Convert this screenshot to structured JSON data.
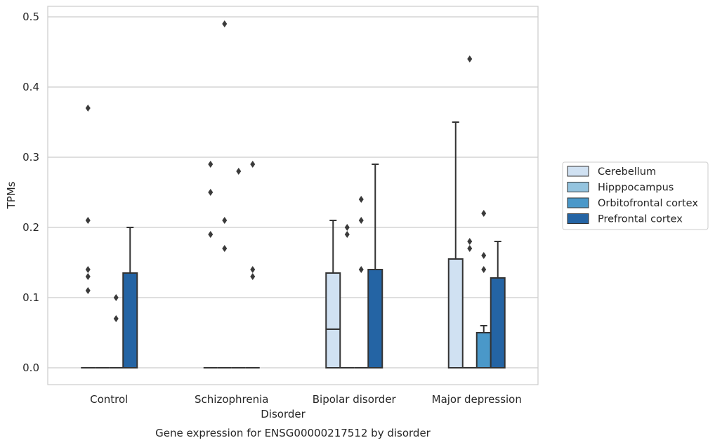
{
  "chart_data": {
    "type": "boxplot",
    "caption": "Gene expression for ENSG00000217512 by disorder",
    "xlabel": "Disorder",
    "ylabel": "TPMs",
    "ylim": [
      -0.024,
      0.515
    ],
    "yticks": [
      0.0,
      0.1,
      0.2,
      0.3,
      0.4,
      0.5
    ],
    "ytick_labels": [
      "0.0",
      "0.1",
      "0.2",
      "0.3",
      "0.4",
      "0.5"
    ],
    "categories": [
      "Control",
      "Schizophrenia",
      "Bipolar disorder",
      "Major depression"
    ],
    "grid": "horizontal",
    "legend_position": "right",
    "series": [
      {
        "name": "Cerebellum",
        "color": "#d0e1f2",
        "boxes": [
          {
            "q1": 0.0,
            "median": 0.0,
            "q3": 0.0,
            "whisker_low": 0.0,
            "whisker_high": 0.0,
            "outliers": [
              0.37,
              0.21,
              0.14,
              0.13,
              0.11
            ]
          },
          {
            "q1": 0.0,
            "median": 0.0,
            "q3": 0.0,
            "whisker_low": 0.0,
            "whisker_high": 0.0,
            "outliers": [
              0.29,
              0.25,
              0.19
            ]
          },
          {
            "q1": 0.0,
            "median": 0.055,
            "q3": 0.135,
            "whisker_low": 0.0,
            "whisker_high": 0.21,
            "outliers": []
          },
          {
            "q1": 0.0,
            "median": 0.0,
            "q3": 0.155,
            "whisker_low": 0.0,
            "whisker_high": 0.35,
            "outliers": []
          }
        ]
      },
      {
        "name": "Hipppocampus",
        "color": "#94c4df",
        "boxes": [
          {
            "q1": 0.0,
            "median": 0.0,
            "q3": 0.0,
            "whisker_low": 0.0,
            "whisker_high": 0.0,
            "outliers": []
          },
          {
            "q1": 0.0,
            "median": 0.0,
            "q3": 0.0,
            "whisker_low": 0.0,
            "whisker_high": 0.0,
            "outliers": [
              0.49,
              0.21,
              0.17
            ]
          },
          {
            "q1": 0.0,
            "median": 0.0,
            "q3": 0.0,
            "whisker_low": 0.0,
            "whisker_high": 0.0,
            "outliers": [
              0.2,
              0.19
            ]
          },
          {
            "q1": 0.0,
            "median": 0.0,
            "q3": 0.0,
            "whisker_low": 0.0,
            "whisker_high": 0.0,
            "outliers": [
              0.44,
              0.18,
              0.17
            ]
          }
        ]
      },
      {
        "name": "Orbitofrontal cortex",
        "color": "#4a98c9",
        "boxes": [
          {
            "q1": 0.0,
            "median": 0.0,
            "q3": 0.0,
            "whisker_low": 0.0,
            "whisker_high": 0.0,
            "outliers": [
              0.1,
              0.07
            ]
          },
          {
            "q1": 0.0,
            "median": 0.0,
            "q3": 0.0,
            "whisker_low": 0.0,
            "whisker_high": 0.0,
            "outliers": [
              0.28
            ]
          },
          {
            "q1": 0.0,
            "median": 0.0,
            "q3": 0.0,
            "whisker_low": 0.0,
            "whisker_high": 0.0,
            "outliers": [
              0.24,
              0.21,
              0.14
            ]
          },
          {
            "q1": 0.0,
            "median": 0.0,
            "q3": 0.05,
            "whisker_low": 0.0,
            "whisker_high": 0.06,
            "outliers": [
              0.22,
              0.16,
              0.14
            ]
          }
        ]
      },
      {
        "name": "Prefrontal cortex",
        "color": "#2464a4",
        "boxes": [
          {
            "q1": 0.0,
            "median": 0.0,
            "q3": 0.135,
            "whisker_low": 0.0,
            "whisker_high": 0.2,
            "outliers": []
          },
          {
            "q1": 0.0,
            "median": 0.0,
            "q3": 0.0,
            "whisker_low": 0.0,
            "whisker_high": 0.0,
            "outliers": [
              0.29,
              0.14,
              0.13
            ]
          },
          {
            "q1": 0.0,
            "median": 0.0,
            "q3": 0.14,
            "whisker_low": 0.0,
            "whisker_high": 0.29,
            "outliers": []
          },
          {
            "q1": 0.0,
            "median": 0.0,
            "q3": 0.128,
            "whisker_low": 0.0,
            "whisker_high": 0.18,
            "outliers": []
          }
        ]
      }
    ]
  }
}
